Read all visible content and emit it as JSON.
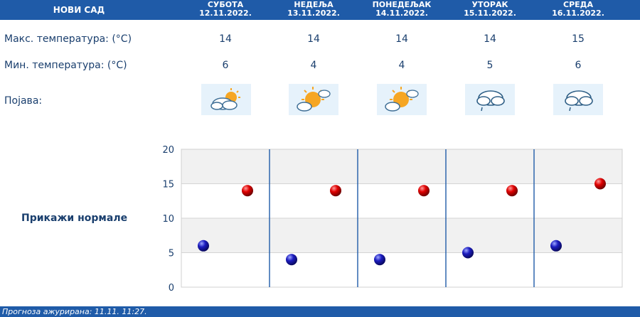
{
  "header": {
    "city": "НОВИ САД",
    "days": [
      {
        "name": "СУБОТА",
        "date": "12.11.2022."
      },
      {
        "name": "НЕДЕЉА",
        "date": "13.11.2022."
      },
      {
        "name": "ПОНЕДЕЉАК",
        "date": "14.11.2022."
      },
      {
        "name": "УТОРАК",
        "date": "15.11.2022."
      },
      {
        "name": "СРЕДА",
        "date": "16.11.2022."
      }
    ]
  },
  "rows": {
    "max_label": "Макс. температура: (°C)",
    "min_label": "Мин. температура: (°C)",
    "phen_label": "Појава:"
  },
  "forecast": {
    "max": [
      "14",
      "14",
      "14",
      "14",
      "15"
    ],
    "min": [
      "6",
      "4",
      "4",
      "5",
      "6"
    ],
    "icons": [
      "partly-cloudy-icon",
      "sunny-intervals-icon",
      "sunny-intervals-icon",
      "cloud-drizzle-icon",
      "cloud-drizzle-icon"
    ]
  },
  "normals_link": "Прикажи нормале",
  "colors": {
    "header_bg": "#1f5ba8",
    "text": "#1a3f6e",
    "max_point": "#cc0000",
    "min_point": "#1a1aa6"
  },
  "chart_data": {
    "type": "scatter",
    "categories": [
      "12.11.2022.",
      "13.11.2022.",
      "14.11.2022.",
      "15.11.2022.",
      "16.11.2022."
    ],
    "series": [
      {
        "values": [
          14,
          14,
          14,
          14,
          15
        ]
      },
      {
        "values": [
          6,
          4,
          4,
          5,
          6
        ]
      }
    ],
    "ylim": [
      0,
      20
    ],
    "yticks": [
      "0",
      "5",
      "10",
      "15",
      "20"
    ],
    "grid": true
  },
  "footer": {
    "text": "Прогноза ажурирана:  11.11.  11:27."
  }
}
